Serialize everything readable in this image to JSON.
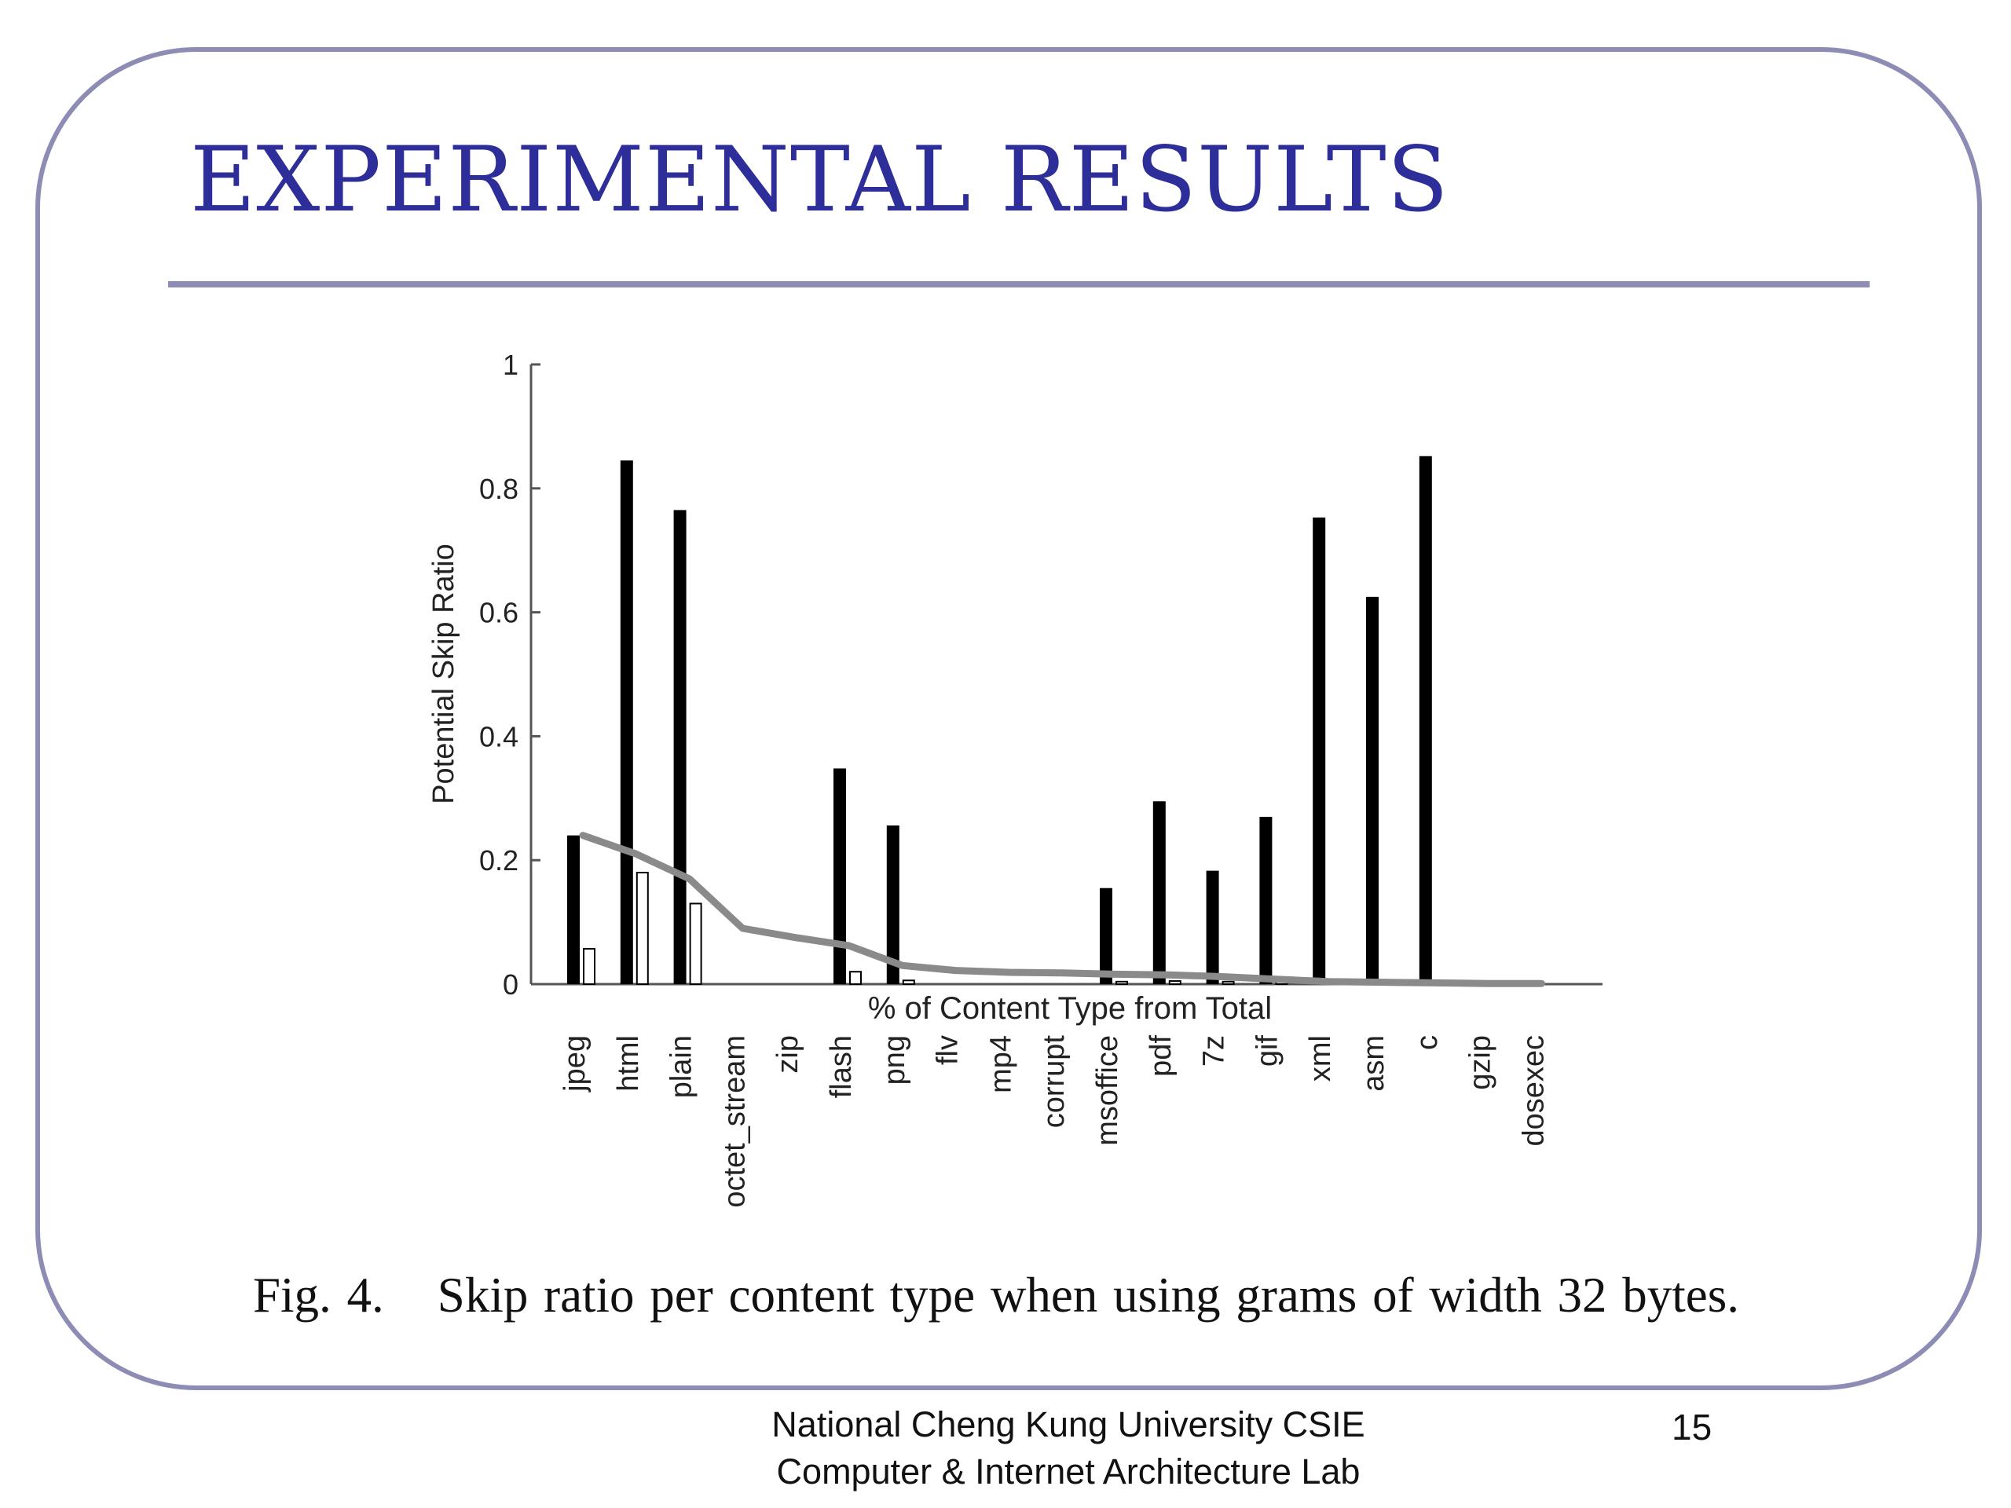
{
  "slide": {
    "title": "EXPERIMENTAL RESULTS",
    "caption_label": "Fig. 4.",
    "caption_text": "Skip ratio per content type when using grams of width 32 bytes.",
    "footer_line1": "National Cheng Kung University CSIE",
    "footer_line2": "Computer & Internet Architecture Lab",
    "page_number": "15",
    "colors": {
      "title": "#2e2e9a",
      "frame": "#8c8cb4",
      "bars": "#000000",
      "line": "#8a8a8a"
    }
  },
  "chart_data": {
    "type": "bar",
    "title": "",
    "xlabel": "% of Content Type from Total",
    "ylabel": "Potential Skip Ratio",
    "ylim": [
      0,
      1
    ],
    "yticks": [
      "0",
      "0.2",
      "0.4",
      "0.6",
      "0.8",
      "1"
    ],
    "categories": [
      "jpeg",
      "html",
      "plain",
      "octet_stream",
      "zip",
      "flash",
      "png",
      "flv",
      "mp4",
      "corrupt",
      "msoffice",
      "pdf",
      "7z",
      "gif",
      "xml",
      "asm",
      "c",
      "gzip",
      "dosexec"
    ],
    "series": [
      {
        "kind": "bar-filled",
        "values": [
          0.24,
          0.845,
          0.765,
          0,
          0,
          0.348,
          0.256,
          0,
          0,
          0,
          0.155,
          0.295,
          0.183,
          0.27,
          0.753,
          0.625,
          0.852,
          0,
          0
        ]
      },
      {
        "kind": "bar-hollow",
        "values": [
          0.057,
          0.18,
          0.13,
          0,
          0,
          0.02,
          0.006,
          0,
          0,
          0,
          0.004,
          0.005,
          0.004,
          0.005,
          0,
          0,
          0,
          0,
          0
        ]
      },
      {
        "kind": "line",
        "values": [
          0.24,
          0.21,
          0.17,
          0.09,
          0.075,
          0.062,
          0.03,
          0.022,
          0.019,
          0.018,
          0.016,
          0.015,
          0.012,
          0.008,
          0.004,
          0.003,
          0.002,
          0.001,
          0.001
        ]
      }
    ],
    "grid": false,
    "legend": "none"
  }
}
